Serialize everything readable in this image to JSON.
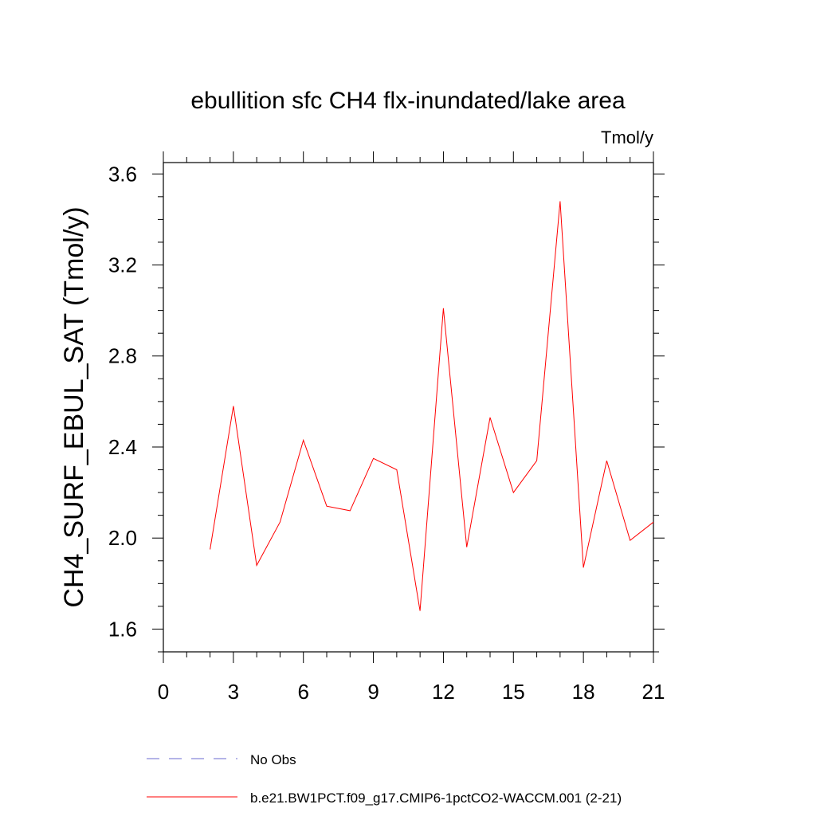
{
  "chart_data": {
    "type": "line",
    "title": "ebullition sfc CH4 flx-inundated/lake area",
    "units_label": "Tmol/y",
    "ylabel": "CH4_SURF_EBUL_SAT  (Tmol/y)",
    "xlabel": "",
    "xlim": [
      0,
      21
    ],
    "ylim": [
      1.5,
      3.65
    ],
    "xticks": [
      0,
      3,
      6,
      9,
      12,
      15,
      18,
      21
    ],
    "yticks": [
      1.6,
      2.0,
      2.4,
      2.8,
      3.2,
      3.6
    ],
    "grid": false,
    "legend_position": "bottom",
    "series": [
      {
        "name": "b.e21.BW1PCT.f09_g17.CMIP6-1pctCO2-WACCM.001 (2-21)",
        "color": "#ff0000",
        "style": "solid",
        "x": [
          2,
          3,
          4,
          5,
          6,
          7,
          8,
          9,
          10,
          11,
          12,
          13,
          14,
          15,
          16,
          17,
          18,
          19,
          20,
          21
        ],
        "values": [
          1.95,
          2.58,
          1.88,
          2.07,
          2.43,
          2.14,
          2.12,
          2.35,
          2.3,
          1.68,
          3.01,
          1.96,
          2.53,
          2.2,
          2.34,
          3.48,
          1.87,
          2.34,
          1.99,
          2.07
        ]
      },
      {
        "name": "No Obs",
        "color": "#6a6ad0",
        "style": "dashed",
        "x": [],
        "values": []
      }
    ]
  }
}
